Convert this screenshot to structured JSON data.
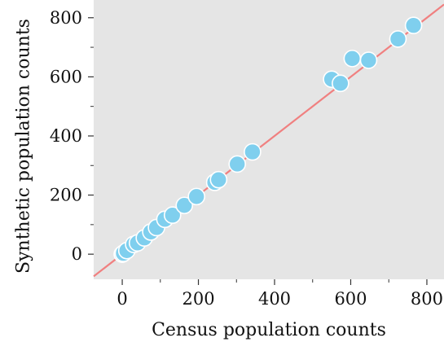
{
  "chart_data": {
    "type": "scatter",
    "xlabel": "Census population counts",
    "ylabel": "Synthetic population counts",
    "xlim": [
      -75,
      845
    ],
    "ylim": [
      -85,
      860
    ],
    "x_ticks": [
      0,
      200,
      400,
      600,
      800
    ],
    "y_ticks": [
      0,
      200,
      400,
      600,
      800
    ],
    "x_minor_ticks": [
      100,
      300,
      500,
      700
    ],
    "y_minor_ticks": [
      100,
      300,
      500,
      700
    ],
    "grid": false,
    "background": "#e5e5e5",
    "reference_line": {
      "slope": 1,
      "intercept": 0,
      "color": "#f08080"
    },
    "marker_color": "#7fcfee",
    "marker_edge": "#ffffff",
    "points": [
      {
        "x": 0,
        "y": 0
      },
      {
        "x": 3,
        "y": 3
      },
      {
        "x": 12,
        "y": 12
      },
      {
        "x": 30,
        "y": 33
      },
      {
        "x": 40,
        "y": 38
      },
      {
        "x": 58,
        "y": 55
      },
      {
        "x": 75,
        "y": 75
      },
      {
        "x": 90,
        "y": 90
      },
      {
        "x": 112,
        "y": 118
      },
      {
        "x": 132,
        "y": 132
      },
      {
        "x": 163,
        "y": 165
      },
      {
        "x": 195,
        "y": 195
      },
      {
        "x": 243,
        "y": 243
      },
      {
        "x": 253,
        "y": 252
      },
      {
        "x": 302,
        "y": 305
      },
      {
        "x": 342,
        "y": 346
      },
      {
        "x": 550,
        "y": 592
      },
      {
        "x": 573,
        "y": 578
      },
      {
        "x": 604,
        "y": 662
      },
      {
        "x": 647,
        "y": 656
      },
      {
        "x": 724,
        "y": 728
      },
      {
        "x": 765,
        "y": 774
      }
    ]
  }
}
